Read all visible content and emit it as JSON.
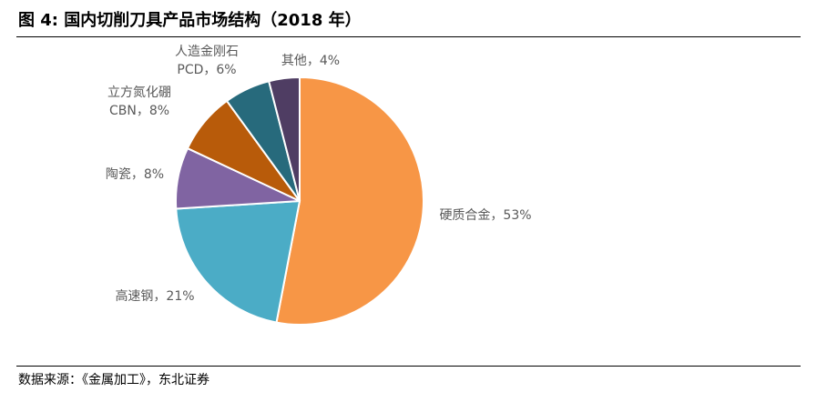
{
  "figure": {
    "title": "图 4: 国内切削刀具产品市场结构（2018 年）",
    "source": "数据来源：《金属加工》，东北证券"
  },
  "chart_data": {
    "type": "pie",
    "title": "图 4: 国内切削刀具产品市场结构（2018 年）",
    "slices": [
      {
        "label": "硬质合金，53%",
        "value": 53,
        "color": "#F79646"
      },
      {
        "label": "高速钢，21%",
        "value": 21,
        "color": "#4BACC6"
      },
      {
        "label": "陶瓷，8%",
        "value": 8,
        "color": "#8064A2"
      },
      {
        "label": [
          "立方氮化硼",
          "CBN，8%"
        ],
        "value": 8,
        "color": "#B85B0A"
      },
      {
        "label": [
          "人造金刚石",
          "PCD，6%"
        ],
        "value": 6,
        "color": "#276A7C"
      },
      {
        "label": "其他，4%",
        "value": 4,
        "color": "#4F3D63"
      }
    ],
    "start_angle": "12 o'clock",
    "direction": "clockwise"
  }
}
